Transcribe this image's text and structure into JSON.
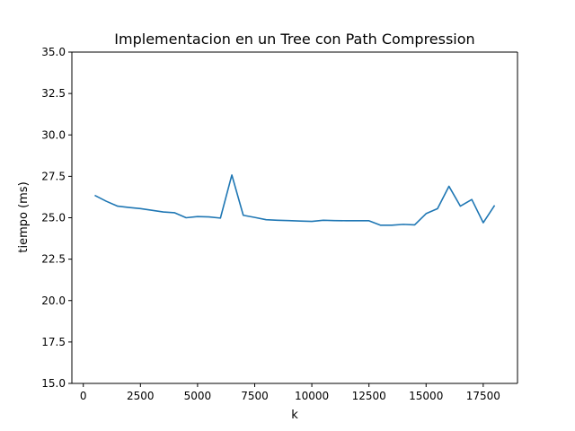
{
  "chart_data": {
    "type": "line",
    "title": "Implementacion en un Tree con Path Compression",
    "xlabel": "k",
    "ylabel": "tiempo (ms)",
    "xlim": [
      -500,
      19000
    ],
    "ylim": [
      15.0,
      35.0
    ],
    "x_ticks": [
      0,
      2500,
      5000,
      7500,
      10000,
      12500,
      15000,
      17500
    ],
    "x_tick_labels": [
      "0",
      "2500",
      "5000",
      "7500",
      "10000",
      "12500",
      "15000",
      "17500"
    ],
    "y_ticks": [
      15.0,
      17.5,
      20.0,
      22.5,
      25.0,
      27.5,
      30.0,
      32.5,
      35.0
    ],
    "y_tick_labels": [
      "15.0",
      "17.5",
      "20.0",
      "22.5",
      "25.0",
      "27.5",
      "30.0",
      "32.5",
      "35.0"
    ],
    "grid": false,
    "series": [
      {
        "color": "#1f77b4",
        "x": [
          500,
          1000,
          1500,
          2000,
          2500,
          3000,
          3500,
          4000,
          4500,
          5000,
          5500,
          6000,
          6500,
          7000,
          7500,
          8000,
          8500,
          9000,
          9500,
          10000,
          10500,
          11000,
          11500,
          12000,
          12500,
          13000,
          13500,
          14000,
          14500,
          15000,
          15500,
          16000,
          16500,
          17000,
          17500,
          18000
        ],
        "y": [
          26.35,
          26.0,
          25.7,
          25.62,
          25.55,
          25.45,
          25.35,
          25.3,
          25.0,
          25.07,
          25.05,
          24.98,
          27.58,
          25.15,
          25.02,
          24.88,
          24.85,
          24.83,
          24.8,
          24.78,
          24.85,
          24.83,
          24.82,
          24.82,
          24.82,
          24.55,
          24.55,
          24.6,
          24.57,
          25.25,
          25.55,
          26.9,
          25.7,
          26.1,
          24.7,
          25.75
        ]
      }
    ]
  }
}
